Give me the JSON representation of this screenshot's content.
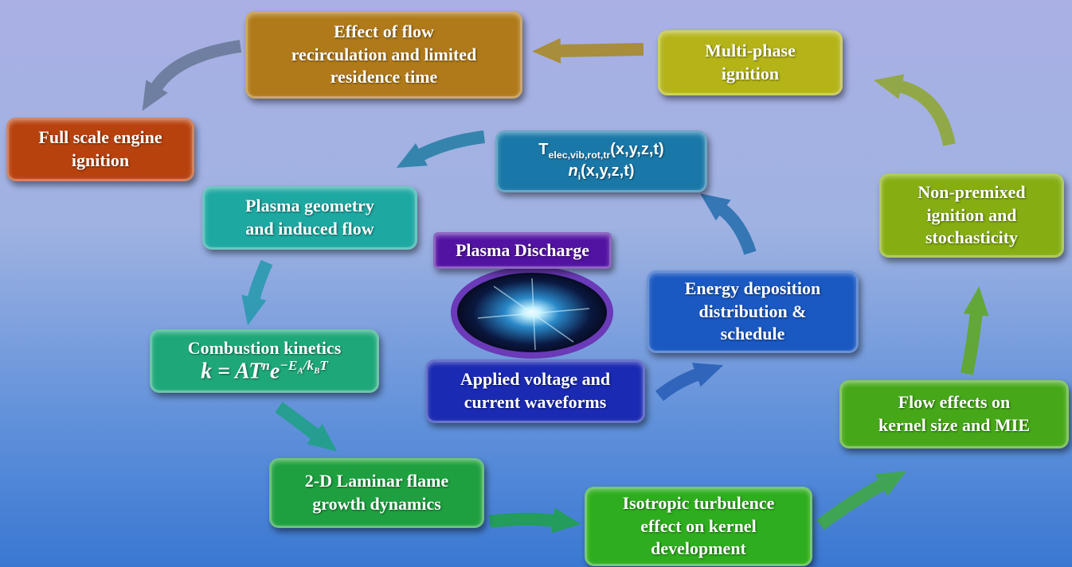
{
  "nodes": [
    {
      "lines": [
        "Effect of flow",
        "recirculation and limited",
        "residence time"
      ]
    },
    {
      "lines": [
        "Multi-phase",
        "ignition"
      ]
    },
    {
      "lines": [
        "Full scale engine",
        "ignition"
      ]
    },
    {
      "label": {
        "temp": "T",
        "temp_sub": "elec,vib,rot,tr",
        "temp_args": "(x,y,z,t)",
        "dens": "n",
        "dens_sub": "i",
        "dens_args": "(x,y,z,t)"
      }
    },
    {
      "lines": [
        "Plasma geometry",
        "and induced flow"
      ]
    },
    {
      "lines": [
        "Non-premixed",
        "ignition and",
        "stochasticity"
      ]
    },
    {
      "lines": [
        "Plasma Discharge"
      ]
    },
    {
      "lines": [
        "Energy deposition",
        "distribution &",
        "schedule"
      ]
    },
    {
      "lines": [
        "Combustion kinetics"
      ],
      "formula": {
        "lhs": "k = AT",
        "n": "n",
        "e": "e",
        "exp1": "−E",
        "exp_sub1": "A",
        "exp2": "/k",
        "exp_sub2": "B",
        "exp3": "T"
      }
    },
    {
      "lines": [
        "Applied voltage and",
        "current waveforms"
      ]
    },
    {
      "lines": [
        "Flow effects on",
        "kernel size and MIE"
      ]
    },
    {
      "lines": [
        "2-D Laminar flame",
        "growth dynamics"
      ]
    },
    {
      "lines": [
        "Isotropic turbulence",
        "effect on kernel",
        "development"
      ]
    }
  ]
}
